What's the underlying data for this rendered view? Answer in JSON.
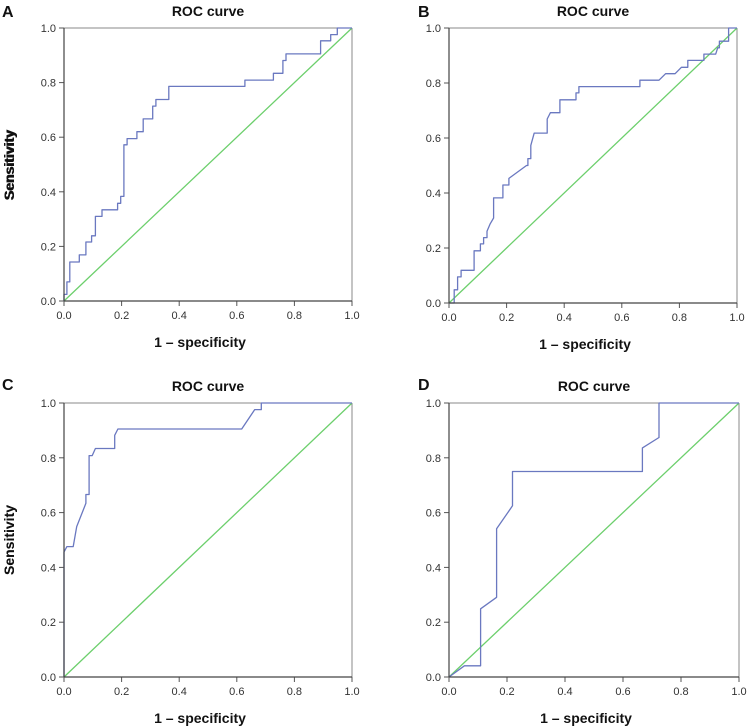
{
  "chart_data": [
    {
      "panel": "A",
      "type": "line",
      "title": "ROC curve",
      "xlabel": "1 – specificity",
      "ylabel": "Sensitivity",
      "xlim": [
        0,
        1
      ],
      "ylim": [
        0,
        1
      ],
      "xticks": [
        "0.0",
        "0.2",
        "0.4",
        "0.6",
        "0.8",
        "1.0"
      ],
      "yticks": [
        "0.0",
        "0.2",
        "0.4",
        "0.6",
        "0.8",
        "1.0"
      ],
      "series": [
        {
          "name": "ROC",
          "color": "#6a78c0",
          "points": [
            [
              0,
              0
            ],
            [
              0,
              0.024
            ],
            [
              0.01,
              0.024
            ],
            [
              0.01,
              0.07
            ],
            [
              0.02,
              0.07
            ],
            [
              0.02,
              0.143
            ],
            [
              0.053,
              0.143
            ],
            [
              0.053,
              0.169
            ],
            [
              0.076,
              0.169
            ],
            [
              0.076,
              0.216
            ],
            [
              0.096,
              0.216
            ],
            [
              0.096,
              0.239
            ],
            [
              0.109,
              0.239
            ],
            [
              0.109,
              0.31
            ],
            [
              0.132,
              0.31
            ],
            [
              0.132,
              0.334
            ],
            [
              0.186,
              0.334
            ],
            [
              0.186,
              0.358
            ],
            [
              0.197,
              0.358
            ],
            [
              0.197,
              0.383
            ],
            [
              0.208,
              0.383
            ],
            [
              0.208,
              0.572
            ],
            [
              0.219,
              0.572
            ],
            [
              0.219,
              0.595
            ],
            [
              0.253,
              0.595
            ],
            [
              0.253,
              0.62
            ],
            [
              0.275,
              0.62
            ],
            [
              0.275,
              0.667
            ],
            [
              0.308,
              0.667
            ],
            [
              0.308,
              0.714
            ],
            [
              0.319,
              0.714
            ],
            [
              0.319,
              0.738
            ],
            [
              0.364,
              0.738
            ],
            [
              0.364,
              0.786
            ],
            [
              0.628,
              0.786
            ],
            [
              0.628,
              0.809
            ],
            [
              0.727,
              0.809
            ],
            [
              0.727,
              0.834
            ],
            [
              0.76,
              0.834
            ],
            [
              0.76,
              0.881
            ],
            [
              0.771,
              0.881
            ],
            [
              0.771,
              0.905
            ],
            [
              0.891,
              0.905
            ],
            [
              0.891,
              0.953
            ],
            [
              0.926,
              0.953
            ],
            [
              0.926,
              0.976
            ],
            [
              0.949,
              0.976
            ],
            [
              0.949,
              1
            ],
            [
              1,
              1
            ]
          ]
        },
        {
          "name": "Reference line",
          "color": "#6ccf6c",
          "points": [
            [
              0,
              0
            ],
            [
              1,
              1
            ]
          ]
        }
      ]
    },
    {
      "panel": "B",
      "type": "line",
      "title": "ROC curve",
      "xlabel": "1 – specificity",
      "ylabel": "Sensitivity",
      "xlim": [
        0,
        1
      ],
      "ylim": [
        0,
        1
      ],
      "xticks": [
        "0.0",
        "0.2",
        "0.4",
        "0.6",
        "0.8",
        "1.0"
      ],
      "yticks": [
        "0.0",
        "0.2",
        "0.4",
        "0.6",
        "0.8",
        "1.0"
      ],
      "series": [
        {
          "name": "ROC",
          "color": "#6a78c0",
          "points": [
            [
              0,
              0
            ],
            [
              0.018,
              0
            ],
            [
              0.018,
              0.048
            ],
            [
              0.03,
              0.048
            ],
            [
              0.03,
              0.095
            ],
            [
              0.042,
              0.095
            ],
            [
              0.042,
              0.119
            ],
            [
              0.087,
              0.119
            ],
            [
              0.087,
              0.19
            ],
            [
              0.109,
              0.19
            ],
            [
              0.109,
              0.215
            ],
            [
              0.12,
              0.215
            ],
            [
              0.12,
              0.238
            ],
            [
              0.132,
              0.238
            ],
            [
              0.132,
              0.261
            ],
            [
              0.143,
              0.288
            ],
            [
              0.155,
              0.309
            ],
            [
              0.155,
              0.382
            ],
            [
              0.187,
              0.382
            ],
            [
              0.187,
              0.429
            ],
            [
              0.208,
              0.429
            ],
            [
              0.208,
              0.453
            ],
            [
              0.269,
              0.5
            ],
            [
              0.274,
              0.5
            ],
            [
              0.274,
              0.525
            ],
            [
              0.284,
              0.525
            ],
            [
              0.284,
              0.573
            ],
            [
              0.296,
              0.618
            ],
            [
              0.341,
              0.618
            ],
            [
              0.341,
              0.669
            ],
            [
              0.352,
              0.692
            ],
            [
              0.385,
              0.692
            ],
            [
              0.385,
              0.739
            ],
            [
              0.441,
              0.739
            ],
            [
              0.441,
              0.764
            ],
            [
              0.451,
              0.764
            ],
            [
              0.451,
              0.787
            ],
            [
              0.663,
              0.787
            ],
            [
              0.663,
              0.81
            ],
            [
              0.729,
              0.81
            ],
            [
              0.752,
              0.834
            ],
            [
              0.785,
              0.834
            ],
            [
              0.807,
              0.857
            ],
            [
              0.829,
              0.857
            ],
            [
              0.829,
              0.882
            ],
            [
              0.885,
              0.882
            ],
            [
              0.885,
              0.905
            ],
            [
              0.926,
              0.905
            ],
            [
              0.933,
              0.928
            ],
            [
              0.939,
              0.928
            ],
            [
              0.939,
              0.952
            ],
            [
              0.971,
              0.952
            ],
            [
              0.971,
              1
            ],
            [
              1,
              1
            ]
          ]
        },
        {
          "name": "Reference line",
          "color": "#6ccf6c",
          "points": [
            [
              0,
              0
            ],
            [
              1,
              1
            ]
          ]
        }
      ]
    },
    {
      "panel": "C",
      "type": "line",
      "title": "ROC curve",
      "xlabel": "1 – specificity",
      "ylabel": "Sensitivity",
      "xlim": [
        0,
        1
      ],
      "ylim": [
        0,
        1
      ],
      "xticks": [
        "0.0",
        "0.2",
        "0.4",
        "0.6",
        "0.8",
        "1.0"
      ],
      "yticks": [
        "0.0",
        "0.2",
        "0.4",
        "0.6",
        "0.8",
        "1.0"
      ],
      "series": [
        {
          "name": "ROC",
          "color": "#6a78c0",
          "points": [
            [
              0,
              0
            ],
            [
              0,
              0.456
            ],
            [
              0.01,
              0.476
            ],
            [
              0.032,
              0.476
            ],
            [
              0.044,
              0.549
            ],
            [
              0.076,
              0.634
            ],
            [
              0.076,
              0.666
            ],
            [
              0.087,
              0.666
            ],
            [
              0.087,
              0.808
            ],
            [
              0.098,
              0.808
            ],
            [
              0.109,
              0.834
            ],
            [
              0.176,
              0.834
            ],
            [
              0.176,
              0.882
            ],
            [
              0.187,
              0.905
            ],
            [
              0.617,
              0.905
            ],
            [
              0.662,
              0.976
            ],
            [
              0.685,
              0.976
            ],
            [
              0.685,
              1
            ],
            [
              1,
              1
            ]
          ]
        },
        {
          "name": "Reference line",
          "color": "#6ccf6c",
          "points": [
            [
              0,
              0
            ],
            [
              1,
              1
            ]
          ]
        }
      ]
    },
    {
      "panel": "D",
      "type": "line",
      "title": "ROC curve",
      "xlabel": "1 – specificity",
      "ylabel": "Sensitivity",
      "xlim": [
        0,
        1
      ],
      "ylim": [
        0,
        1
      ],
      "xticks": [
        "0.0",
        "0.2",
        "0.4",
        "0.6",
        "0.8",
        "1.0"
      ],
      "yticks": [
        "0.0",
        "0.2",
        "0.4",
        "0.6",
        "0.8",
        "1.0"
      ],
      "series": [
        {
          "name": "ROC",
          "color": "#6a78c0",
          "points": [
            [
              0,
              0
            ],
            [
              0.053,
              0.041
            ],
            [
              0.109,
              0.041
            ],
            [
              0.109,
              0.249
            ],
            [
              0.164,
              0.291
            ],
            [
              0.164,
              0.541
            ],
            [
              0.219,
              0.625
            ],
            [
              0.219,
              0.75
            ],
            [
              0.667,
              0.75
            ],
            [
              0.667,
              0.836
            ],
            [
              0.724,
              0.874
            ],
            [
              0.724,
              1
            ],
            [
              1,
              1
            ]
          ]
        },
        {
          "name": "Reference line",
          "color": "#6ccf6c",
          "points": [
            [
              0,
              0
            ],
            [
              1,
              1
            ]
          ]
        }
      ]
    }
  ]
}
